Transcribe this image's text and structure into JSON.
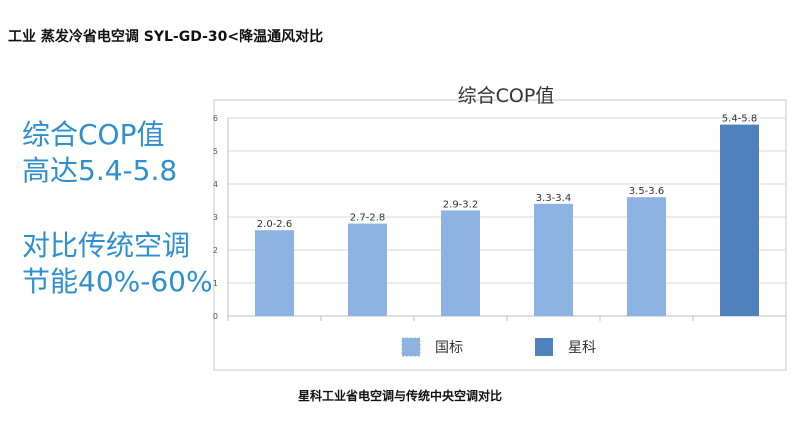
{
  "page": {
    "title": "工业 蒸发冷省电空调  SYL-GD-30<降温通风对比",
    "left_text": [
      "综合COP值",
      "高达5.4-5.8",
      "对比传统空调",
      "节能40%-60%"
    ],
    "caption": "星科工业省电空调与传统中央空调对比"
  },
  "chart_data": {
    "type": "bar",
    "title": "综合COP值",
    "ylim": [
      0,
      6
    ],
    "yticks": [
      0,
      1,
      2,
      3,
      4,
      5,
      6
    ],
    "grid": true,
    "legend_position": "bottom",
    "series": [
      {
        "name": "国标",
        "color": "#8db3e2",
        "values": [
          2.6,
          2.8,
          3.2,
          3.4,
          3.6
        ],
        "labels": [
          "2.0-2.6",
          "2.7-2.8",
          "2.9-3.2",
          "3.3-3.4",
          "3.5-3.6"
        ]
      },
      {
        "name": "星科",
        "color": "#4f81bd",
        "values": [
          5.8
        ],
        "labels": [
          "5.4-5.8"
        ]
      }
    ]
  }
}
